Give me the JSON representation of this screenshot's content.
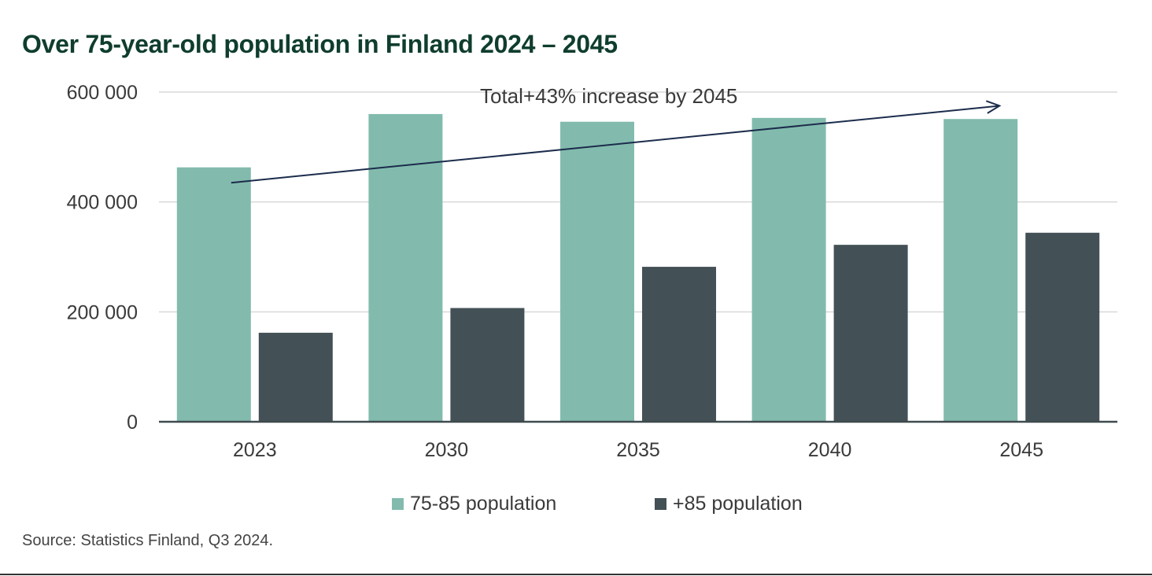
{
  "page": {
    "title": "Over 75-year-old population in Finland 2024 – 2045",
    "source": "Source: Statistics Finland, Q3 2024."
  },
  "colors": {
    "title": "#0f3d2e",
    "series_75_85": "#82bbad",
    "series_85_plus": "#435156",
    "gridline": "#d9d9d9",
    "axis": "#3f4a4e",
    "arrow": "#1c2c4c",
    "text": "#3a3a3a"
  },
  "chart_data": {
    "type": "bar",
    "title": "Over 75-year-old population in Finland 2024 – 2045",
    "categories": [
      "2023",
      "2030",
      "2035",
      "2040",
      "2045"
    ],
    "series": [
      {
        "name": "75-85 population",
        "values": [
          463000,
          560000,
          546000,
          553000,
          551000
        ]
      },
      {
        "name": "+85 population",
        "values": [
          162000,
          207000,
          282000,
          322000,
          344000
        ]
      }
    ],
    "ylim": [
      0,
      600000
    ],
    "yticks": [
      0,
      200000,
      400000,
      600000
    ],
    "ytick_labels": [
      "0",
      "200 000",
      "400 000",
      "600 000"
    ],
    "grid": true,
    "legend_position": "bottom",
    "annotation": {
      "text": "Total+43% increase by 2045",
      "arrow_from": {
        "category": "2023",
        "value": 435000
      },
      "arrow_to": {
        "category": "2045",
        "value": 575000
      }
    }
  }
}
